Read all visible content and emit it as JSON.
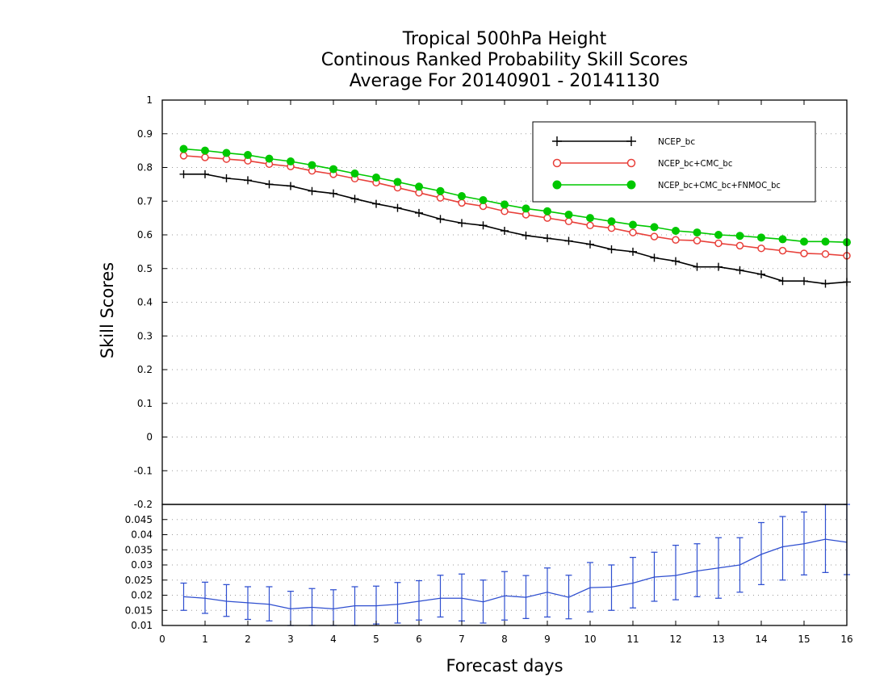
{
  "title_lines": [
    "Tropical 500hPa Height",
    "Continous Ranked Probability Skill Scores",
    "Average For 20140901 - 20141130"
  ],
  "chart_data": [
    {
      "type": "line",
      "ylabel": "Skill Scores",
      "xlim": [
        0,
        16
      ],
      "ylim": [
        -0.2,
        1
      ],
      "yticks": [
        "1",
        "0.9",
        "0.8",
        "0.7",
        "0.6",
        "0.5",
        "0.4",
        "0.3",
        "0.2",
        "0.1",
        "0",
        "-0.1",
        "-0.2"
      ],
      "grid": true,
      "legend_position": "top-right",
      "x": [
        0.5,
        1,
        1.5,
        2,
        2.5,
        3,
        3.5,
        4,
        4.5,
        5,
        5.5,
        6,
        6.5,
        7,
        7.5,
        8,
        8.5,
        9,
        9.5,
        10,
        10.5,
        11,
        11.5,
        12,
        12.5,
        13,
        13.5,
        14,
        14.5,
        15,
        15.5,
        16
      ],
      "series": [
        {
          "name": "NCEP_bc",
          "color": "#000000",
          "marker": "plus",
          "values": [
            0.78,
            0.78,
            0.768,
            0.762,
            0.75,
            0.745,
            0.73,
            0.723,
            0.707,
            0.692,
            0.68,
            0.665,
            0.647,
            0.635,
            0.628,
            0.612,
            0.598,
            0.59,
            0.582,
            0.572,
            0.557,
            0.55,
            0.532,
            0.522,
            0.505,
            0.505,
            0.495,
            0.483,
            0.463,
            0.463,
            0.455,
            0.46
          ]
        },
        {
          "name": "NCEP_bc+CMC_bc",
          "color": "#e8403a",
          "marker": "open-circle",
          "values": [
            0.835,
            0.83,
            0.825,
            0.82,
            0.81,
            0.803,
            0.79,
            0.78,
            0.767,
            0.755,
            0.74,
            0.725,
            0.71,
            0.695,
            0.685,
            0.67,
            0.66,
            0.65,
            0.64,
            0.628,
            0.62,
            0.607,
            0.595,
            0.585,
            0.583,
            0.575,
            0.568,
            0.56,
            0.553,
            0.545,
            0.543,
            0.538
          ]
        },
        {
          "name": "NCEP_bc+CMC_bc+FNMOC_bc",
          "color": "#00c800",
          "marker": "filled-circle",
          "values": [
            0.855,
            0.85,
            0.843,
            0.837,
            0.826,
            0.818,
            0.807,
            0.795,
            0.782,
            0.77,
            0.757,
            0.743,
            0.73,
            0.715,
            0.703,
            0.69,
            0.678,
            0.67,
            0.66,
            0.65,
            0.64,
            0.63,
            0.623,
            0.612,
            0.607,
            0.6,
            0.597,
            0.592,
            0.587,
            0.58,
            0.58,
            0.578
          ]
        }
      ]
    },
    {
      "type": "line",
      "xlabel": "Forecast days",
      "xlim": [
        0,
        16
      ],
      "xticks": [
        "0",
        "1",
        "2",
        "3",
        "4",
        "5",
        "6",
        "7",
        "8",
        "9",
        "10",
        "11",
        "12",
        "13",
        "14",
        "15",
        "16"
      ],
      "ylim": [
        0.01,
        0.05
      ],
      "yticks": [
        "0.045",
        "0.04",
        "0.035",
        "0.03",
        "0.025",
        "0.02",
        "0.015",
        "0.01"
      ],
      "grid": true,
      "series": [
        {
          "color": "#2f4fd0",
          "x": [
            0.5,
            1,
            1.5,
            2,
            2.5,
            3,
            3.5,
            4,
            4.5,
            5,
            5.5,
            6,
            6.5,
            7,
            7.5,
            8,
            8.5,
            9,
            9.5,
            10,
            10.5,
            11,
            11.5,
            12,
            12.5,
            13,
            13.5,
            14,
            14.5,
            15,
            15.5,
            16
          ],
          "values": [
            0.0195,
            0.019,
            0.018,
            0.0175,
            0.017,
            0.0155,
            0.016,
            0.0155,
            0.0165,
            0.0165,
            0.017,
            0.018,
            0.019,
            0.019,
            0.0178,
            0.0198,
            0.0193,
            0.021,
            0.0193,
            0.0225,
            0.0227,
            0.024,
            0.026,
            0.0265,
            0.028,
            0.029,
            0.03,
            0.0335,
            0.036,
            0.037,
            0.0385,
            0.0375
          ],
          "error_low": [
            0.015,
            0.014,
            0.013,
            0.012,
            0.0115,
            0.01,
            0.01,
            0.01,
            0.01,
            0.0105,
            0.0108,
            0.0118,
            0.0128,
            0.0115,
            0.0108,
            0.0118,
            0.0123,
            0.0128,
            0.0122,
            0.0145,
            0.015,
            0.0158,
            0.018,
            0.0185,
            0.0195,
            0.019,
            0.021,
            0.0235,
            0.025,
            0.0267,
            0.0275,
            0.0268
          ],
          "error_high": [
            0.024,
            0.0243,
            0.0235,
            0.0228,
            0.0228,
            0.0213,
            0.0222,
            0.0218,
            0.0228,
            0.023,
            0.0242,
            0.0248,
            0.0266,
            0.027,
            0.025,
            0.0278,
            0.0265,
            0.029,
            0.0266,
            0.0308,
            0.03,
            0.0325,
            0.0342,
            0.0365,
            0.037,
            0.039,
            0.039,
            0.044,
            0.046,
            0.0475,
            0.0508,
            0.05
          ]
        }
      ]
    }
  ]
}
